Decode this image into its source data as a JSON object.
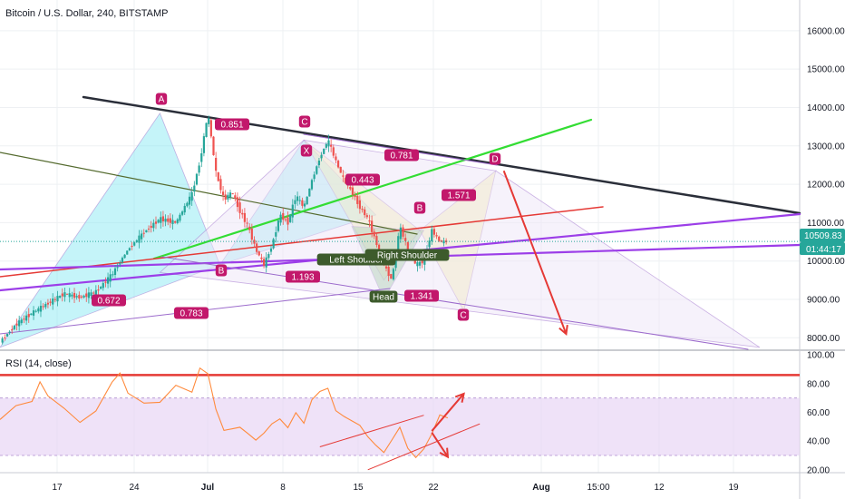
{
  "header": {
    "title": "Bitcoin / U.S. Dollar, 240, BITSTAMP"
  },
  "rsi_panel": {
    "label": "RSI (14, close)"
  },
  "price_axis": {
    "last_price": "10509.83",
    "countdown": "01:44:17",
    "last_price_color": "#26a69a",
    "countdown_color": "#26a69a"
  },
  "colors": {
    "upper_trend": "#2a2e39",
    "green_trend": "#33dd33",
    "red_trend": "#e53935",
    "purple_trend": "#9c3ee8",
    "thin_trend": "#9c6bcc",
    "olive_trend": "#556b2f",
    "cyan_fill": "#7fe6f2",
    "yellow_fill": "#f5ef9a",
    "green_fill": "#7fbf7f",
    "pattern_label": "#c2186b",
    "shoulder_label": "#3d5b2c",
    "candle_up": "#26a69a",
    "candle_down": "#ef5350",
    "rsi_line": "#ff8a3c",
    "rsi_band": "#e8d5f5",
    "rsi_upper_line": "#e53935",
    "arrow": "#e53935"
  },
  "chart_data": [
    {
      "type": "candlestick",
      "title": "Bitcoin / U.S. Dollar, 240, BITSTAMP",
      "x_tick_labels": [
        "17",
        "24",
        "Jul",
        "8",
        "15",
        "22",
        "Aug",
        "15:00",
        "12",
        "19"
      ],
      "y_tick_labels": [
        "8000.00",
        "9000.00",
        "10000.00",
        "11000.00",
        "12000.00",
        "13000.00",
        "14000.00",
        "15000.00",
        "16000.00"
      ],
      "ylim": [
        7700,
        16800
      ],
      "last_value": 10509.83,
      "price_path": [
        [
          0,
          7900
        ],
        [
          2,
          8350
        ],
        [
          4,
          8650
        ],
        [
          6,
          8900
        ],
        [
          8,
          9150
        ],
        [
          10,
          9050
        ],
        [
          12,
          9200
        ],
        [
          14,
          9650
        ],
        [
          16,
          10300
        ],
        [
          18,
          10750
        ],
        [
          20,
          11100
        ],
        [
          22,
          11000
        ],
        [
          24,
          11750
        ],
        [
          25,
          12600
        ],
        [
          26,
          13850
        ],
        [
          27,
          12300
        ],
        [
          28,
          11600
        ],
        [
          29,
          11800
        ],
        [
          30,
          11300
        ],
        [
          31,
          10900
        ],
        [
          32,
          10300
        ],
        [
          33,
          9900
        ],
        [
          34,
          10400
        ],
        [
          35,
          11200
        ],
        [
          36,
          11000
        ],
        [
          37,
          11700
        ],
        [
          38,
          11400
        ],
        [
          39,
          12100
        ],
        [
          40,
          12700
        ],
        [
          41,
          13150
        ],
        [
          42,
          12600
        ],
        [
          43,
          12100
        ],
        [
          44,
          11800
        ],
        [
          45,
          11400
        ],
        [
          46,
          11100
        ],
        [
          47,
          10500
        ],
        [
          48,
          9900
        ],
        [
          49,
          9500
        ],
        [
          50,
          10900
        ],
        [
          51,
          10300
        ],
        [
          52,
          9900
        ],
        [
          53,
          10000
        ],
        [
          54,
          10800
        ],
        [
          55,
          10500
        ],
        [
          56,
          10509.83
        ]
      ],
      "annotations": [
        {
          "text": "A",
          "kind": "point",
          "x": 26,
          "y": 13850
        },
        {
          "text": "B",
          "kind": "point",
          "x": 33,
          "y": 9900
        },
        {
          "text": "C",
          "kind": "point",
          "x": 41,
          "y": 13150
        },
        {
          "text": "X",
          "kind": "point",
          "x": 41,
          "y": 13150
        },
        {
          "text": "B",
          "kind": "point",
          "x": 54,
          "y": 10800
        },
        {
          "text": "C",
          "kind": "point",
          "x": 58.5,
          "y": 8700
        },
        {
          "text": "D",
          "kind": "point",
          "x": 63,
          "y": 12350
        },
        {
          "text": "0.851",
          "kind": "ratio"
        },
        {
          "text": "0.781",
          "kind": "ratio"
        },
        {
          "text": "0.443",
          "kind": "ratio"
        },
        {
          "text": "1.571",
          "kind": "ratio"
        },
        {
          "text": "0.672",
          "kind": "ratio"
        },
        {
          "text": "1.193",
          "kind": "ratio"
        },
        {
          "text": "0.783",
          "kind": "ratio"
        },
        {
          "text": "1.341",
          "kind": "ratio"
        },
        {
          "text": "Left Shoulder",
          "kind": "shoulder"
        },
        {
          "text": "Right Shoulder",
          "kind": "shoulder"
        },
        {
          "text": "Head",
          "kind": "shoulder"
        }
      ]
    },
    {
      "type": "line",
      "title": "RSI (14, close)",
      "y_tick_labels": [
        "20.00",
        "40.00",
        "60.00",
        "80.00",
        "100.00"
      ],
      "ylim": [
        18,
        102
      ],
      "band": [
        30,
        70
      ],
      "upper_line": 86,
      "values": [
        [
          0,
          55
        ],
        [
          2,
          62
        ],
        [
          4,
          70
        ],
        [
          5,
          84
        ],
        [
          6,
          72
        ],
        [
          8,
          60
        ],
        [
          10,
          55
        ],
        [
          12,
          62
        ],
        [
          14,
          78
        ],
        [
          15,
          86
        ],
        [
          16,
          75
        ],
        [
          18,
          68
        ],
        [
          20,
          64
        ],
        [
          22,
          80
        ],
        [
          24,
          76
        ],
        [
          25,
          90
        ],
        [
          26,
          84
        ],
        [
          27,
          60
        ],
        [
          28,
          48
        ],
        [
          30,
          52
        ],
        [
          31,
          45
        ],
        [
          32,
          38
        ],
        [
          33,
          43
        ],
        [
          34,
          52
        ],
        [
          35,
          58
        ],
        [
          36,
          52
        ],
        [
          37,
          60
        ],
        [
          38,
          50
        ],
        [
          39,
          66
        ],
        [
          40,
          74
        ],
        [
          41,
          79
        ],
        [
          42,
          64
        ],
        [
          43,
          58
        ],
        [
          44,
          52
        ],
        [
          45,
          48
        ],
        [
          46,
          42
        ],
        [
          47,
          39
        ],
        [
          48,
          35
        ],
        [
          49,
          42
        ],
        [
          50,
          48
        ],
        [
          51,
          32
        ],
        [
          52,
          27
        ],
        [
          53,
          36
        ],
        [
          54,
          48
        ],
        [
          55,
          60
        ],
        [
          56,
          55
        ]
      ]
    }
  ]
}
